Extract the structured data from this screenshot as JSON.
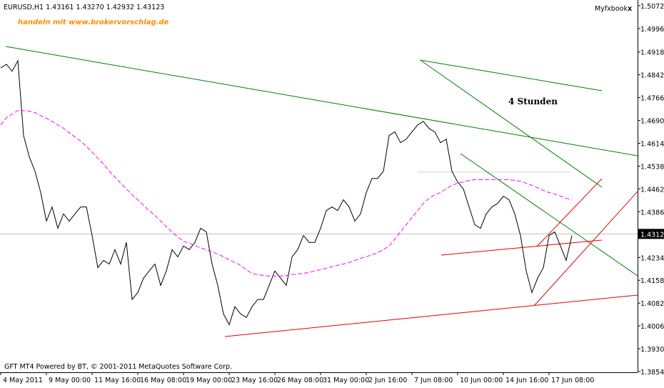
{
  "header": "EURUSD,H1  1.43161 1.43270 1.42932 1.43123",
  "banner": "handeln mit www.brokervorschlag.de",
  "brand": "Myfxbook",
  "close_icon": "x",
  "footer": "GFT MT4 Powered by BT, © 2001-2011 MetaQuotes Software Corp.",
  "chart_data": {
    "type": "line",
    "annotation": "4 Stunden",
    "current_price": 1.43123,
    "categories": [
      "4 May 2011",
      null,
      null,
      null,
      null,
      null,
      null,
      null,
      "9 May 00:00",
      null,
      null,
      null,
      null,
      null,
      null,
      null,
      "11 May 16:00",
      null,
      null,
      null,
      null,
      null,
      null,
      null,
      "16 May 08:00",
      null,
      null,
      null,
      null,
      null,
      null,
      null,
      "19 May 00:00",
      null,
      null,
      null,
      null,
      null,
      null,
      null,
      "23 May 16:00",
      null,
      null,
      null,
      null,
      null,
      null,
      null,
      "26 May 08:00",
      null,
      null,
      null,
      null,
      null,
      null,
      null,
      "31 May 00:00",
      null,
      null,
      null,
      null,
      null,
      null,
      null,
      "2 Jun 16:00",
      null,
      null,
      null,
      null,
      null,
      null,
      null,
      "7 Jun 08:00",
      null,
      null,
      null,
      null,
      null,
      null,
      null,
      "10 Jun 00:00",
      null,
      null,
      null,
      null,
      null,
      null,
      null,
      "14 Jun 16:00",
      null,
      null,
      null,
      null,
      null,
      null,
      null,
      "17 Jun 08:00",
      null,
      null,
      null,
      null
    ],
    "series": [
      {
        "color": "#000000",
        "values": [
          1.4865,
          1.4877,
          1.4854,
          1.4889,
          1.464,
          1.4569,
          1.4521,
          1.445,
          1.4355,
          1.4402,
          1.4331,
          1.4379,
          1.4355,
          1.4379,
          1.4402,
          1.4402,
          1.4307,
          1.42,
          1.4224,
          1.4212,
          1.426,
          1.4212,
          1.4284,
          1.4094,
          1.4117,
          1.4165,
          1.4189,
          1.4212,
          1.4141,
          1.4189,
          1.426,
          1.4236,
          1.4272,
          1.426,
          1.4284,
          1.4331,
          1.4319,
          1.4212,
          1.4141,
          1.4046,
          1.401,
          1.407,
          1.4046,
          1.4034,
          1.407,
          1.4094,
          1.4094,
          1.4141,
          1.4189,
          1.4165,
          1.4141,
          1.4236,
          1.426,
          1.4307,
          1.4284,
          1.4284,
          1.4331,
          1.439,
          1.4402,
          1.439,
          1.4426,
          1.4402,
          1.4355,
          1.4379,
          1.445,
          1.4497,
          1.4497,
          1.4521,
          1.464,
          1.4652,
          1.4616,
          1.4628,
          1.4652,
          1.4675,
          1.4687,
          1.4663,
          1.4652,
          1.4616,
          1.4628,
          1.4521,
          1.4485,
          1.4462,
          1.4402,
          1.4343,
          1.4331,
          1.4379,
          1.4402,
          1.4414,
          1.4438,
          1.4426,
          1.4379,
          1.4307,
          1.4189,
          1.4117,
          1.4165,
          1.42,
          1.4307,
          1.4319,
          1.4272,
          1.4224,
          1.4307
        ]
      },
      {
        "color": "#ff00ff",
        "dashed": true,
        "values": [
          1.4675,
          1.4699,
          1.4711,
          1.4723,
          1.4723,
          1.4721,
          1.4716,
          1.4706,
          1.4697,
          1.4687,
          1.4675,
          1.4664,
          1.4649,
          1.4635,
          1.4621,
          1.4604,
          1.4585,
          1.4564,
          1.4545,
          1.4521,
          1.4502,
          1.4481,
          1.4462,
          1.4443,
          1.4426,
          1.4407,
          1.439,
          1.4374,
          1.4355,
          1.4336,
          1.4319,
          1.4302,
          1.4288,
          1.4281,
          1.4274,
          1.4266,
          1.426,
          1.4253,
          1.4245,
          1.4236,
          1.4226,
          1.4217,
          1.4208,
          1.4193,
          1.4181,
          1.4177,
          1.4174,
          1.4172,
          1.4172,
          1.4172,
          1.4174,
          1.4177,
          1.4179,
          1.4181,
          1.4184,
          1.4189,
          1.4193,
          1.4198,
          1.4203,
          1.4208,
          1.4212,
          1.4217,
          1.4224,
          1.4231,
          1.4236,
          1.4243,
          1.425,
          1.426,
          1.4272,
          1.4295,
          1.4319,
          1.4343,
          1.4367,
          1.439,
          1.4414,
          1.4431,
          1.4443,
          1.445,
          1.4462,
          1.4474,
          1.4481,
          1.4485,
          1.449,
          1.4493,
          1.4493,
          1.4493,
          1.4493,
          1.4493,
          1.4493,
          1.4493,
          1.449,
          1.4488,
          1.4481,
          1.4474,
          1.4466,
          1.4457,
          1.445,
          1.4445,
          1.4438,
          1.4431,
          1.4426
        ]
      }
    ],
    "ylim": [
      1.3854,
      1.5072
    ],
    "yticks": [
      {
        "value": 1.5072,
        "label": "1.50720"
      },
      {
        "value": 1.4996,
        "label": "1.49960"
      },
      {
        "value": 1.4918,
        "label": "1.49180"
      },
      {
        "value": 1.4842,
        "label": "1.48420"
      },
      {
        "value": 1.4766,
        "label": "1.47660"
      },
      {
        "value": 1.469,
        "label": "1.46900"
      },
      {
        "value": 1.4614,
        "label": "1.46140"
      },
      {
        "value": 1.4538,
        "label": "1.45380"
      },
      {
        "value": 1.4462,
        "label": "1.44620"
      },
      {
        "value": 1.4386,
        "label": "1.43860"
      },
      {
        "value": 1.4234,
        "label": "1.42340"
      },
      {
        "value": 1.4158,
        "label": "1.41580"
      },
      {
        "value": 1.4082,
        "label": "1.40820"
      },
      {
        "value": 1.4006,
        "label": "1.40060"
      },
      {
        "value": 1.393,
        "label": "1.39300"
      },
      {
        "value": 1.3854,
        "label": "1.38540"
      }
    ]
  }
}
